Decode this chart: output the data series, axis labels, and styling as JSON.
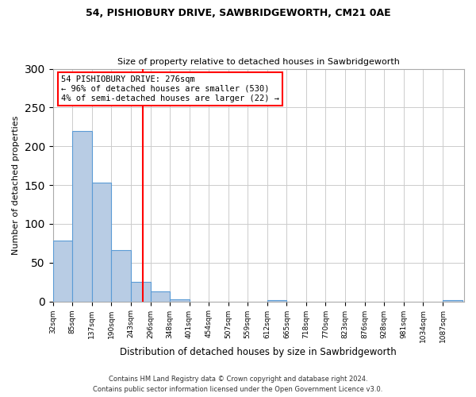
{
  "title1": "54, PISHIOBURY DRIVE, SAWBRIDGEWORTH, CM21 0AE",
  "title2": "Size of property relative to detached houses in Sawbridgeworth",
  "xlabel": "Distribution of detached houses by size in Sawbridgeworth",
  "ylabel": "Number of detached properties",
  "bin_labels": [
    "32sqm",
    "85sqm",
    "137sqm",
    "190sqm",
    "243sqm",
    "296sqm",
    "348sqm",
    "401sqm",
    "454sqm",
    "507sqm",
    "559sqm",
    "612sqm",
    "665sqm",
    "718sqm",
    "770sqm",
    "823sqm",
    "876sqm",
    "928sqm",
    "981sqm",
    "1034sqm",
    "1087sqm"
  ],
  "bin_edges": [
    32,
    85,
    137,
    190,
    243,
    296,
    348,
    401,
    454,
    507,
    559,
    612,
    665,
    718,
    770,
    823,
    876,
    928,
    981,
    1034,
    1087
  ],
  "bar_heights": [
    78,
    220,
    153,
    66,
    25,
    13,
    3,
    0,
    0,
    0,
    0,
    2,
    0,
    0,
    0,
    0,
    0,
    0,
    0,
    0,
    2
  ],
  "bar_color": "#b8cce4",
  "bar_edge_color": "#5b9bd5",
  "vline_x": 276,
  "vline_color": "red",
  "annotation_title": "54 PISHIOBURY DRIVE: 276sqm",
  "annotation_line1": "← 96% of detached houses are smaller (530)",
  "annotation_line2": "4% of semi-detached houses are larger (22) →",
  "ylim": [
    0,
    300
  ],
  "yticks": [
    0,
    50,
    100,
    150,
    200,
    250,
    300
  ],
  "footer1": "Contains HM Land Registry data © Crown copyright and database right 2024.",
  "footer2": "Contains public sector information licensed under the Open Government Licence v3.0."
}
